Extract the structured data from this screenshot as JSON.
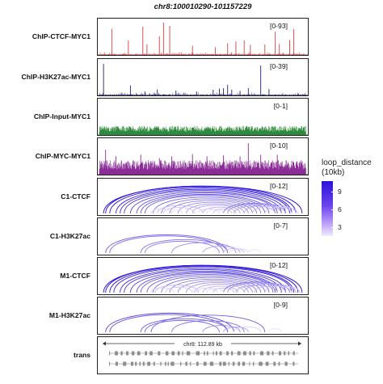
{
  "title": "chr8:100010290-101157229",
  "chart_data": {
    "type": "genome_tracks",
    "region": "chr8:100010290-101157229",
    "tracks": [
      {
        "label": "ChIP-CTCF-MYC1",
        "kind": "signal",
        "range": "[0-93]",
        "color": "#e03b3b",
        "peaks": [
          [
            0.06,
            0.79
          ],
          [
            0.14,
            0.44
          ],
          [
            0.21,
            0.85
          ],
          [
            0.23,
            0.32
          ],
          [
            0.29,
            0.56
          ],
          [
            0.31,
            0.98
          ],
          [
            0.34,
            0.88
          ],
          [
            0.45,
            0.28
          ],
          [
            0.56,
            0.24
          ],
          [
            0.62,
            0.35
          ],
          [
            0.66,
            0.41
          ],
          [
            0.7,
            0.44
          ],
          [
            0.73,
            0.31
          ],
          [
            0.8,
            0.32
          ],
          [
            0.85,
            0.7
          ],
          [
            0.87,
            0.33
          ],
          [
            0.92,
            0.45
          ],
          [
            0.94,
            0.78
          ]
        ]
      },
      {
        "label": "ChIP-H3K27ac-MYC1",
        "kind": "signal",
        "range": "[0-39]",
        "color": "#1e1e7a",
        "peaks": [
          [
            0.02,
            0.95
          ],
          [
            0.15,
            0.3
          ],
          [
            0.22,
            0.12
          ],
          [
            0.28,
            0.18
          ],
          [
            0.37,
            0.15
          ],
          [
            0.47,
            0.12
          ],
          [
            0.55,
            0.17
          ],
          [
            0.58,
            0.2
          ],
          [
            0.6,
            0.22
          ],
          [
            0.62,
            0.32
          ],
          [
            0.64,
            0.17
          ],
          [
            0.68,
            0.14
          ],
          [
            0.72,
            0.22
          ],
          [
            0.78,
            0.9
          ],
          [
            0.82,
            0.19
          ]
        ]
      },
      {
        "label": "ChIP-Input-MYC1",
        "kind": "noise",
        "range": "[0-1]",
        "color": "#2e8b3e"
      },
      {
        "label": "ChIP-MYC-MYC1",
        "kind": "noise",
        "range": "[0-10]",
        "color": "#8a2d96",
        "peaks": [
          [
            0.03,
            0.75
          ],
          [
            0.08,
            0.55
          ],
          [
            0.2,
            0.6
          ],
          [
            0.29,
            0.5
          ],
          [
            0.35,
            0.55
          ],
          [
            0.45,
            0.62
          ],
          [
            0.52,
            0.55
          ],
          [
            0.6,
            0.58
          ],
          [
            0.68,
            0.55
          ],
          [
            0.72,
            0.95
          ],
          [
            0.78,
            0.6
          ],
          [
            0.86,
            0.6
          ]
        ]
      },
      {
        "label": "C1-CTCF",
        "kind": "loops",
        "range": "[0-12]",
        "loops": [
          [
            0.02,
            0.98,
            10
          ],
          [
            0.03,
            0.95,
            10
          ],
          [
            0.05,
            0.93,
            9.5
          ],
          [
            0.08,
            0.92,
            9
          ],
          [
            0.1,
            0.9,
            9
          ],
          [
            0.12,
            0.88,
            8.5
          ],
          [
            0.15,
            0.86,
            8
          ],
          [
            0.18,
            0.85,
            7.5
          ],
          [
            0.2,
            0.82,
            7
          ],
          [
            0.22,
            0.8,
            7
          ],
          [
            0.26,
            0.78,
            6.5
          ],
          [
            0.3,
            0.76,
            6
          ],
          [
            0.34,
            0.74,
            5.5
          ],
          [
            0.38,
            0.72,
            5
          ],
          [
            0.42,
            0.7,
            4.5
          ],
          [
            0.45,
            0.68,
            4
          ],
          [
            0.5,
            0.66,
            3.5
          ],
          [
            0.55,
            0.64,
            3
          ],
          [
            0.6,
            0.9,
            6
          ],
          [
            0.62,
            0.88,
            5
          ],
          [
            0.65,
            0.85,
            4
          ],
          [
            0.7,
            0.95,
            4
          ],
          [
            0.74,
            0.93,
            3
          ],
          [
            0.8,
            0.96,
            2.5
          ],
          [
            0.28,
            0.5,
            3
          ],
          [
            0.31,
            0.46,
            2.5
          ],
          [
            0.48,
            0.58,
            2
          ],
          [
            0.52,
            0.6,
            2
          ],
          [
            0.25,
            0.35,
            2
          ],
          [
            0.35,
            0.4,
            1.5
          ]
        ]
      },
      {
        "label": "C1-H3K27ac",
        "kind": "loops",
        "range": "[0-7]",
        "loops": [
          [
            0.03,
            0.62,
            7
          ],
          [
            0.05,
            0.6,
            6.5
          ],
          [
            0.2,
            0.62,
            6
          ],
          [
            0.22,
            0.58,
            5.5
          ],
          [
            0.35,
            0.66,
            5
          ],
          [
            0.5,
            0.68,
            4
          ],
          [
            0.6,
            0.7,
            3
          ],
          [
            0.63,
            0.72,
            2
          ],
          [
            0.72,
            0.78,
            1.5
          ]
        ]
      },
      {
        "label": "M1-CTCF",
        "kind": "loops",
        "range": "[0-12]",
        "loops": [
          [
            0.02,
            0.98,
            10
          ],
          [
            0.03,
            0.96,
            10
          ],
          [
            0.05,
            0.94,
            9.5
          ],
          [
            0.07,
            0.93,
            9
          ],
          [
            0.1,
            0.9,
            9
          ],
          [
            0.12,
            0.88,
            8.5
          ],
          [
            0.15,
            0.86,
            8
          ],
          [
            0.18,
            0.85,
            7.5
          ],
          [
            0.2,
            0.84,
            7
          ],
          [
            0.23,
            0.82,
            7
          ],
          [
            0.26,
            0.8,
            6.5
          ],
          [
            0.3,
            0.78,
            6
          ],
          [
            0.34,
            0.76,
            5.5
          ],
          [
            0.38,
            0.74,
            5
          ],
          [
            0.42,
            0.72,
            4.5
          ],
          [
            0.46,
            0.7,
            4
          ],
          [
            0.5,
            0.67,
            3.5
          ],
          [
            0.55,
            0.65,
            3
          ],
          [
            0.6,
            0.92,
            6
          ],
          [
            0.62,
            0.9,
            5
          ],
          [
            0.66,
            0.86,
            4
          ],
          [
            0.7,
            0.95,
            4
          ],
          [
            0.75,
            0.93,
            3
          ],
          [
            0.8,
            0.97,
            2.5
          ],
          [
            0.27,
            0.48,
            3
          ],
          [
            0.32,
            0.45,
            2.5
          ],
          [
            0.47,
            0.57,
            2
          ],
          [
            0.52,
            0.6,
            2
          ],
          [
            0.25,
            0.36,
            2
          ]
        ]
      },
      {
        "label": "M1-H3K27ac",
        "kind": "loops",
        "range": "[0-9]",
        "loops": [
          [
            0.03,
            0.65,
            8
          ],
          [
            0.05,
            0.62,
            7.5
          ],
          [
            0.2,
            0.62,
            7
          ],
          [
            0.22,
            0.58,
            6.5
          ],
          [
            0.25,
            0.8,
            7
          ],
          [
            0.35,
            0.7,
            6
          ],
          [
            0.5,
            0.68,
            5
          ],
          [
            0.6,
            0.72,
            4
          ],
          [
            0.65,
            0.78,
            2
          ],
          [
            0.82,
            0.88,
            1.5
          ]
        ]
      },
      {
        "label": "trans",
        "kind": "genes",
        "range": "",
        "ruler_label": "chr8: 112.89 kb"
      }
    ],
    "legend": {
      "title_line1": "loop_distance",
      "title_line2": "(10kb)",
      "ticks": [
        "9",
        "6",
        "3"
      ],
      "tick_values": [
        9,
        6,
        3
      ],
      "min": 1,
      "max": 10,
      "color_low": "#f1eafe",
      "color_high": "#2b13d8"
    }
  }
}
